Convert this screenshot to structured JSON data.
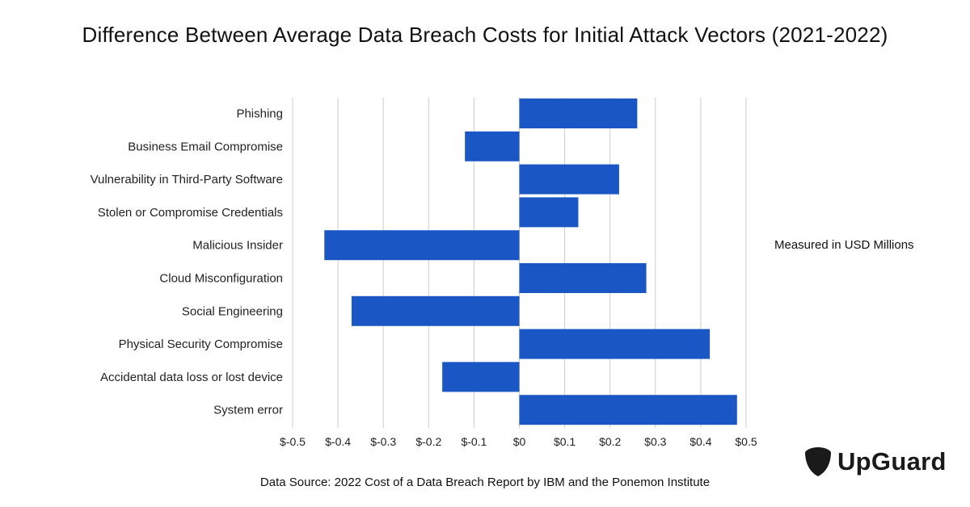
{
  "title": "Difference Between Average Data Breach Costs for Initial Attack Vectors (2021-2022)",
  "unit_note": "Measured in USD Millions",
  "source": "Data Source: 2022 Cost of a Data Breach Report by IBM and the Ponemon Institute",
  "logo": {
    "text": "UpGuard"
  },
  "colors": {
    "bar": "#1a56c4",
    "grid": "#cccccc",
    "logo": "#1a1a1a"
  },
  "chart_data": {
    "type": "bar",
    "orientation": "horizontal",
    "title": "Difference Between Average Data Breach Costs for Initial Attack Vectors (2021-2022)",
    "xlabel": "Measured in USD Millions",
    "ylabel": "",
    "xlim": [
      -0.5,
      0.5
    ],
    "grid": true,
    "categories": [
      "Phishing",
      "Business Email Compromise",
      "Vulnerability in Third-Party Software",
      "Stolen or Compromise Credentials",
      "Malicious Insider",
      "Cloud Misconfiguration",
      "Social Engineering",
      "Physical Security Compromise",
      "Accidental data loss or lost device",
      "System error"
    ],
    "values": [
      0.26,
      -0.12,
      0.22,
      0.13,
      -0.43,
      0.28,
      -0.37,
      0.42,
      -0.17,
      0.48
    ],
    "ticks": [
      -0.5,
      -0.4,
      -0.3,
      -0.2,
      -0.1,
      0,
      0.1,
      0.2,
      0.3,
      0.4,
      0.5
    ],
    "tick_labels": [
      "$-0.5",
      "$-0.4",
      "$-0.3",
      "$-0.2",
      "$-0.1",
      "$0",
      "$0.1",
      "$0.2",
      "$0.3",
      "$0.4",
      "$0.5"
    ]
  }
}
